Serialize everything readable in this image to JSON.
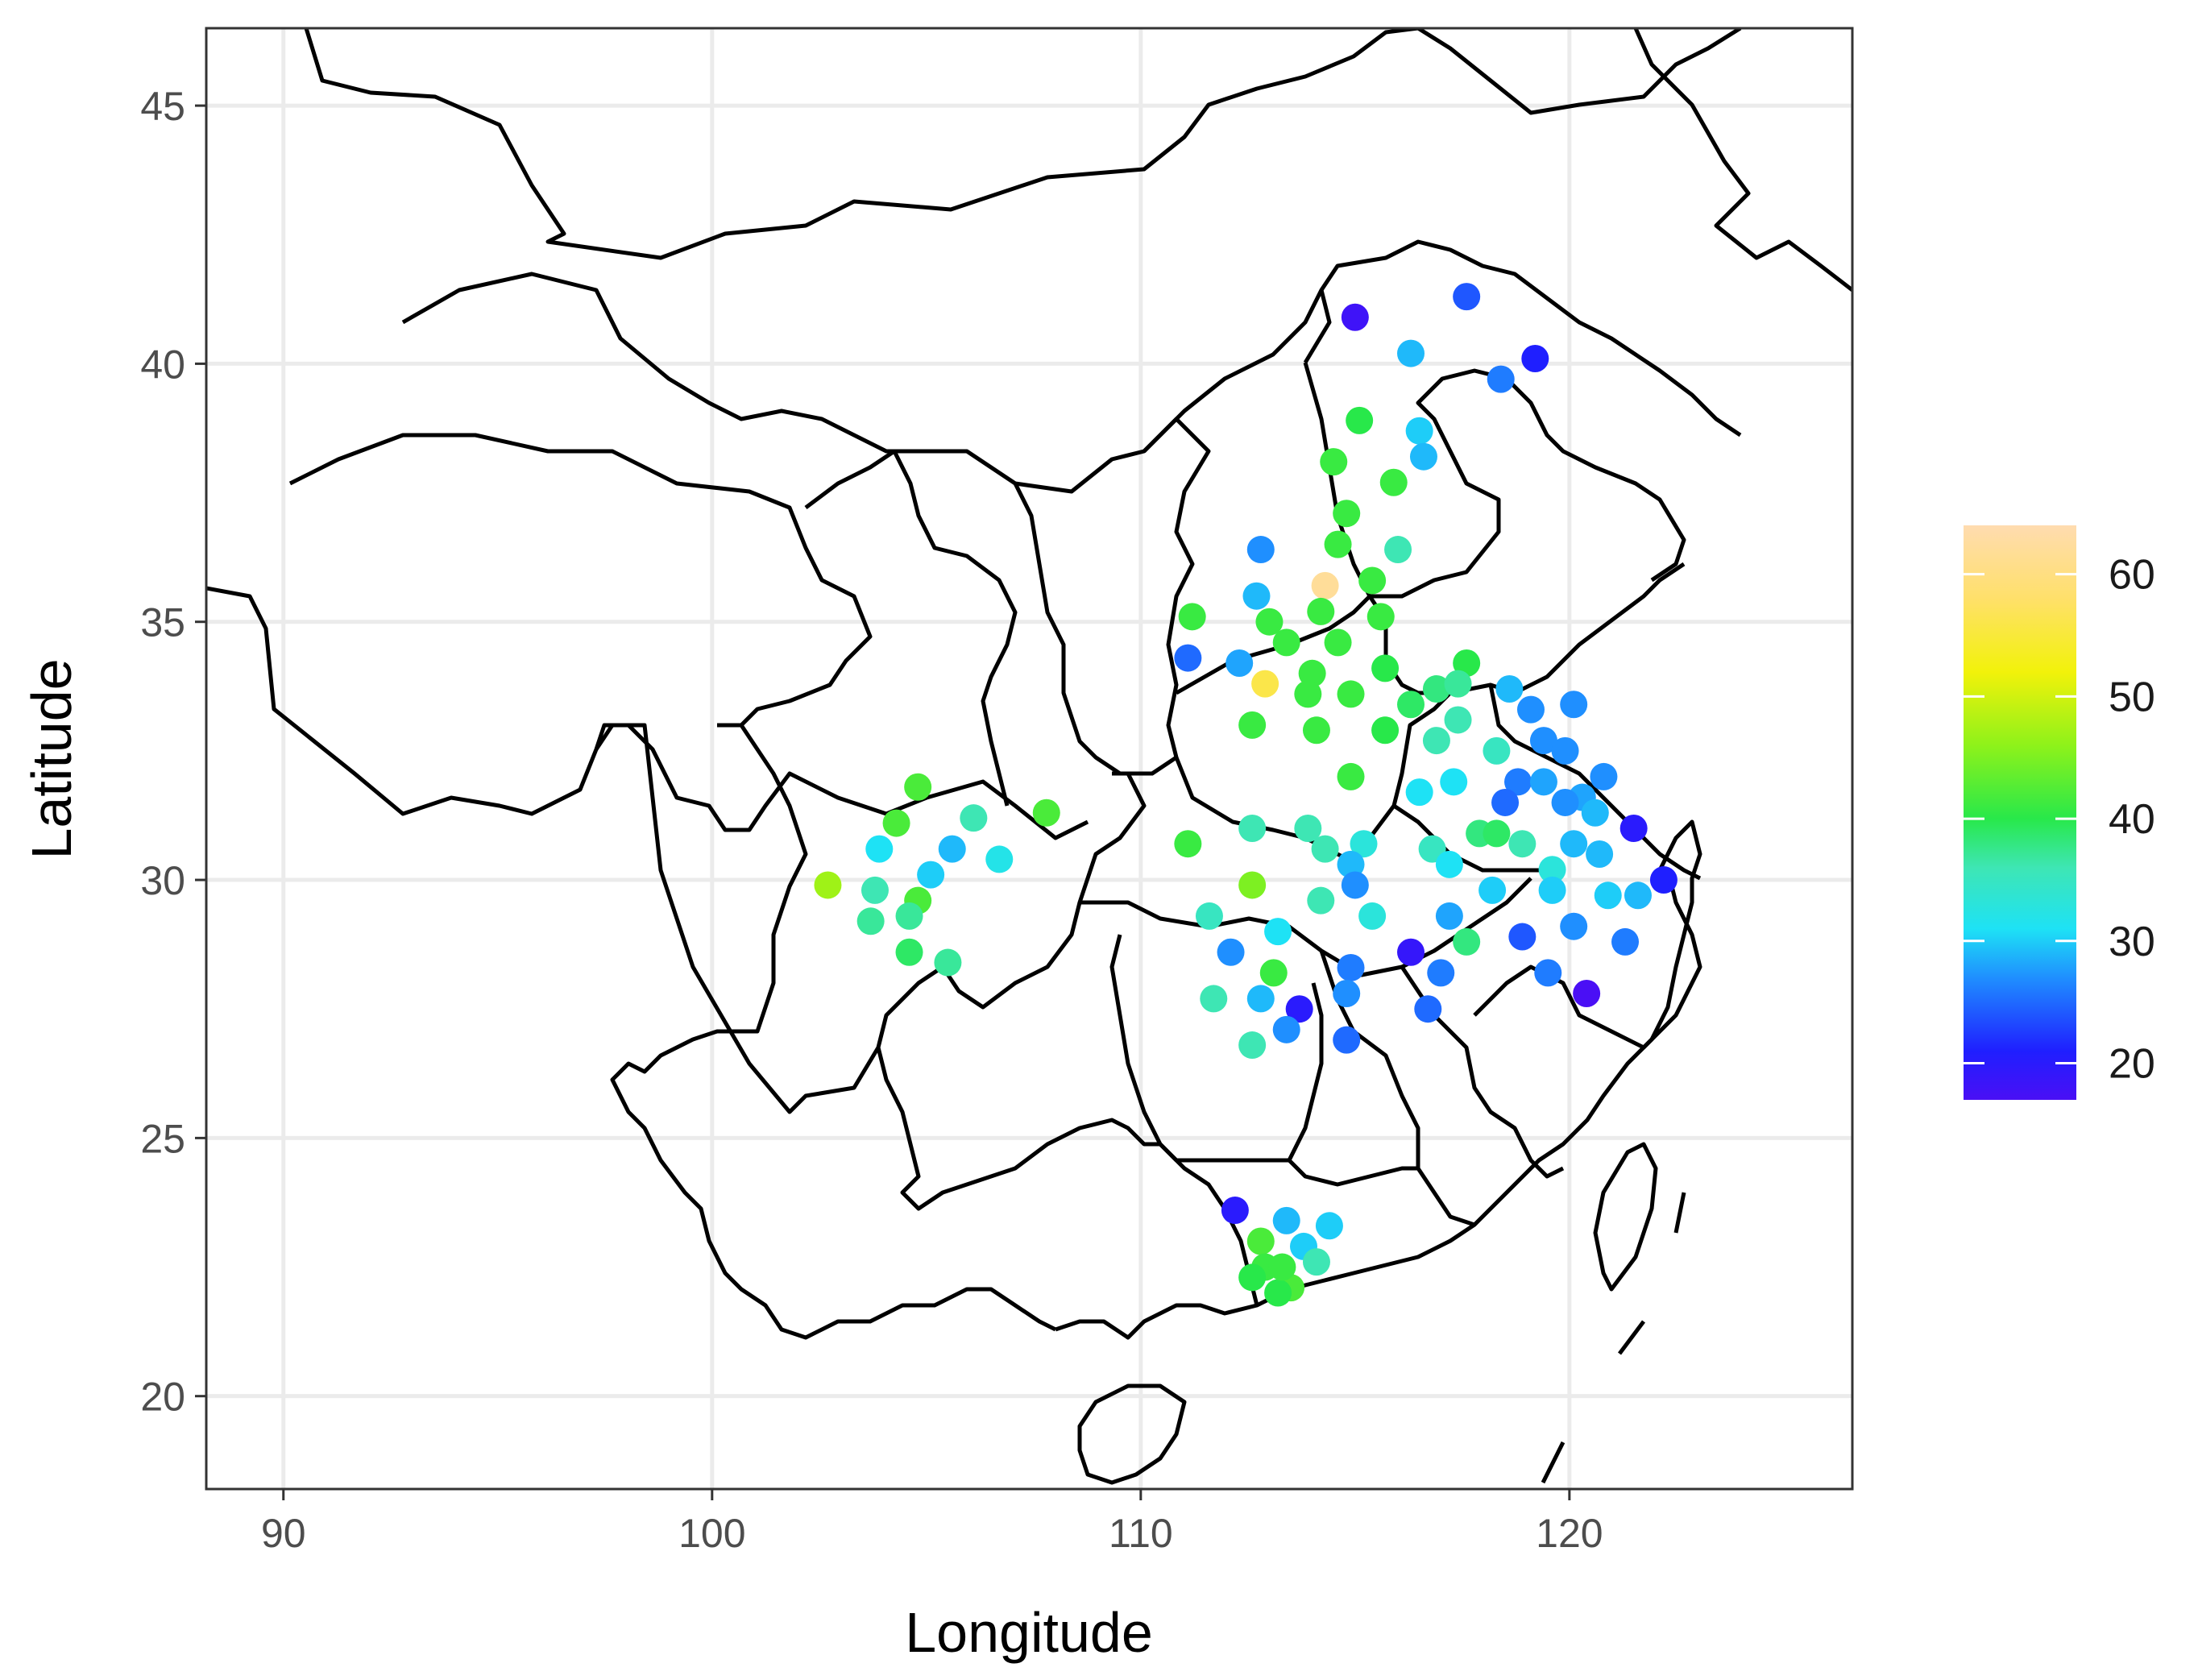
{
  "chart_data": {
    "type": "scatter",
    "title": "",
    "xlabel": "Longitude",
    "ylabel": "Latitude",
    "xlim": [
      88.2,
      126.6
    ],
    "ylim": [
      18.2,
      46.5
    ],
    "x_ticks": [
      90,
      100,
      110,
      120
    ],
    "y_ticks": [
      20,
      25,
      30,
      35,
      40,
      45
    ],
    "grid": true,
    "basemap": "province boundaries (China)",
    "color_scale": {
      "min": 17,
      "max": 64,
      "ticks": [
        20,
        30,
        40,
        50,
        60
      ],
      "stops": [
        {
          "value": 17,
          "color": "#4a0ff5"
        },
        {
          "value": 21,
          "color": "#1f1fff"
        },
        {
          "value": 27,
          "color": "#1f8fff"
        },
        {
          "value": 31,
          "color": "#1ee2f5"
        },
        {
          "value": 36,
          "color": "#3ee6b4"
        },
        {
          "value": 40,
          "color": "#28e84a"
        },
        {
          "value": 46,
          "color": "#8ef21a"
        },
        {
          "value": 52,
          "color": "#f2f20a"
        },
        {
          "value": 58,
          "color": "#ffe06a"
        },
        {
          "value": 64,
          "color": "#ffdcb0"
        }
      ],
      "legend_position": "right"
    },
    "points": [
      [
        115.0,
        40.9,
        18
      ],
      [
        117.6,
        41.3,
        24
      ],
      [
        119.2,
        40.1,
        21
      ],
      [
        116.3,
        40.2,
        29
      ],
      [
        118.4,
        39.7,
        26
      ],
      [
        115.1,
        38.9,
        40
      ],
      [
        116.5,
        38.7,
        30
      ],
      [
        116.6,
        38.2,
        29
      ],
      [
        114.5,
        38.1,
        41
      ],
      [
        115.9,
        37.7,
        41
      ],
      [
        114.8,
        37.1,
        41
      ],
      [
        116.0,
        36.4,
        36
      ],
      [
        114.6,
        36.5,
        41
      ],
      [
        112.8,
        36.4,
        27
      ],
      [
        114.3,
        35.7,
        62
      ],
      [
        115.4,
        35.8,
        41
      ],
      [
        112.7,
        35.5,
        29
      ],
      [
        111.2,
        35.1,
        41
      ],
      [
        113.0,
        35.0,
        41
      ],
      [
        114.2,
        35.2,
        41
      ],
      [
        115.6,
        35.1,
        41
      ],
      [
        113.4,
        34.6,
        41
      ],
      [
        114.6,
        34.6,
        41
      ],
      [
        111.1,
        34.3,
        25
      ],
      [
        112.3,
        34.2,
        28
      ],
      [
        115.7,
        34.1,
        40
      ],
      [
        117.6,
        34.2,
        40
      ],
      [
        114.0,
        34.0,
        41
      ],
      [
        112.9,
        33.8,
        56
      ],
      [
        113.9,
        33.6,
        41
      ],
      [
        114.9,
        33.6,
        41
      ],
      [
        116.3,
        33.4,
        39
      ],
      [
        116.9,
        33.7,
        38
      ],
      [
        117.4,
        33.8,
        37
      ],
      [
        118.6,
        33.7,
        29
      ],
      [
        119.1,
        33.3,
        27
      ],
      [
        120.1,
        33.4,
        27
      ],
      [
        112.6,
        33.0,
        41
      ],
      [
        114.1,
        32.9,
        41
      ],
      [
        115.7,
        32.9,
        40
      ],
      [
        116.9,
        32.7,
        36
      ],
      [
        117.4,
        33.1,
        36
      ],
      [
        118.3,
        32.5,
        35
      ],
      [
        119.4,
        32.7,
        27
      ],
      [
        119.9,
        32.5,
        27
      ],
      [
        114.9,
        32.0,
        41
      ],
      [
        117.3,
        31.9,
        31
      ],
      [
        116.5,
        31.7,
        31
      ],
      [
        118.8,
        31.9,
        26
      ],
      [
        119.4,
        31.9,
        28
      ],
      [
        120.3,
        31.6,
        28
      ],
      [
        120.8,
        32.0,
        27
      ],
      [
        118.5,
        31.5,
        25
      ],
      [
        119.9,
        31.5,
        27
      ],
      [
        120.6,
        31.3,
        29
      ],
      [
        121.5,
        31.0,
        20
      ],
      [
        104.8,
        31.8,
        42
      ],
      [
        104.3,
        31.1,
        42
      ],
      [
        106.1,
        31.2,
        36
      ],
      [
        107.8,
        31.3,
        42
      ],
      [
        103.9,
        30.6,
        31
      ],
      [
        105.6,
        30.6,
        29
      ],
      [
        106.7,
        30.4,
        32
      ],
      [
        105.1,
        30.1,
        30
      ],
      [
        102.7,
        29.9,
        47
      ],
      [
        103.8,
        29.8,
        36
      ],
      [
        104.8,
        29.6,
        42
      ],
      [
        103.7,
        29.2,
        37
      ],
      [
        104.6,
        29.3,
        37
      ],
      [
        104.6,
        28.6,
        39
      ],
      [
        105.5,
        28.4,
        37
      ],
      [
        111.1,
        30.7,
        41
      ],
      [
        112.6,
        31.0,
        36
      ],
      [
        113.9,
        31.0,
        36
      ],
      [
        114.3,
        30.6,
        36
      ],
      [
        115.2,
        30.7,
        33
      ],
      [
        114.9,
        30.3,
        29
      ],
      [
        115.0,
        29.9,
        27
      ],
      [
        116.8,
        30.6,
        35
      ],
      [
        117.2,
        30.3,
        31
      ],
      [
        117.9,
        30.9,
        38
      ],
      [
        118.3,
        30.9,
        39
      ],
      [
        118.9,
        30.7,
        36
      ],
      [
        119.6,
        30.2,
        33
      ],
      [
        120.1,
        30.7,
        29
      ],
      [
        120.7,
        30.5,
        29
      ],
      [
        118.2,
        29.8,
        30
      ],
      [
        119.6,
        29.8,
        30
      ],
      [
        120.9,
        29.7,
        30
      ],
      [
        121.6,
        29.7,
        29
      ],
      [
        122.2,
        30.0,
        21
      ],
      [
        111.6,
        29.3,
        35
      ],
      [
        112.6,
        29.9,
        45
      ],
      [
        114.2,
        29.6,
        36
      ],
      [
        115.4,
        29.3,
        33
      ],
      [
        113.2,
        29.0,
        31
      ],
      [
        117.2,
        29.3,
        28
      ],
      [
        117.6,
        28.8,
        38
      ],
      [
        118.9,
        28.9,
        24
      ],
      [
        120.1,
        29.1,
        27
      ],
      [
        112.1,
        28.6,
        27
      ],
      [
        113.1,
        28.2,
        41
      ],
      [
        114.9,
        28.3,
        26
      ],
      [
        116.3,
        28.6,
        19
      ],
      [
        117.0,
        28.2,
        26
      ],
      [
        119.5,
        28.2,
        26
      ],
      [
        120.4,
        27.8,
        17
      ],
      [
        121.3,
        28.8,
        26
      ],
      [
        111.7,
        27.7,
        36
      ],
      [
        112.8,
        27.7,
        29
      ],
      [
        113.7,
        27.5,
        20
      ],
      [
        114.8,
        27.8,
        27
      ],
      [
        116.7,
        27.5,
        25
      ],
      [
        113.4,
        27.1,
        27
      ],
      [
        114.8,
        26.9,
        25
      ],
      [
        112.6,
        26.8,
        36
      ],
      [
        112.2,
        23.6,
        20
      ],
      [
        113.4,
        23.4,
        29
      ],
      [
        114.4,
        23.3,
        30
      ],
      [
        112.8,
        23.0,
        42
      ],
      [
        113.8,
        22.9,
        30
      ],
      [
        114.1,
        22.6,
        36
      ],
      [
        112.9,
        22.5,
        41
      ],
      [
        112.6,
        22.3,
        40
      ],
      [
        113.5,
        22.1,
        42
      ],
      [
        113.2,
        22.0,
        40
      ],
      [
        113.3,
        22.5,
        41
      ]
    ]
  }
}
